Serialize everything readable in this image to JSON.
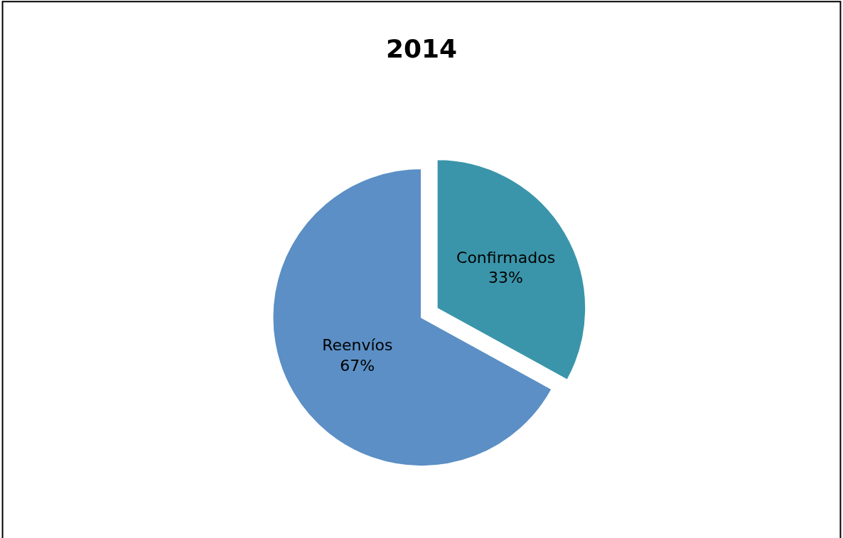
{
  "chart_data": {
    "type": "pie",
    "title": "2014",
    "categories": [
      "Confirmados",
      "Reenvíos"
    ],
    "values": [
      33,
      67
    ],
    "colors": [
      "#3a95aa",
      "#5b8fc5"
    ],
    "value_labels": [
      "33%",
      "67%"
    ]
  }
}
